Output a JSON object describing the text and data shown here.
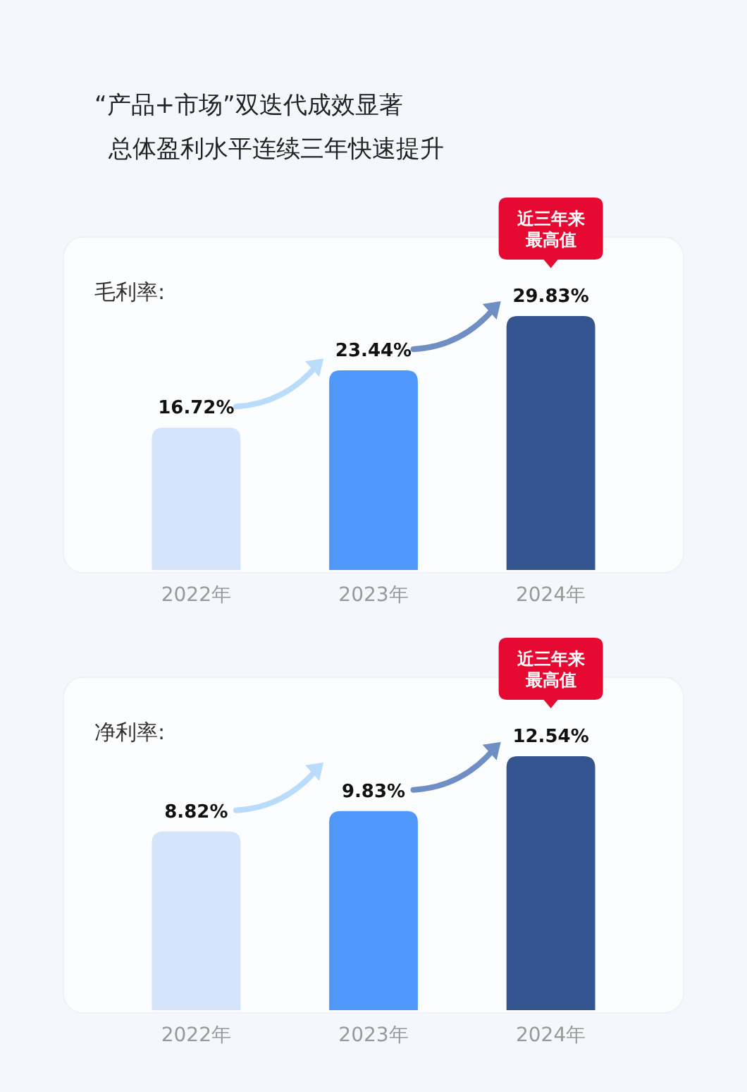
{
  "chart_data": [
    {
      "type": "bar",
      "title": "“产品+市场”双迭代成效显著",
      "subtitle": "总体盈利水平连续三年快速提升",
      "ylabel": "毛利率:",
      "categories": [
        "2022年",
        "2023年",
        "2024年"
      ],
      "values": [
        16.72,
        23.44,
        29.83
      ],
      "colors": [
        "#d6e4fb",
        "#4f97f9",
        "#34548f"
      ],
      "value_labels": [
        "16.72%",
        "23.44%",
        "29.83%"
      ],
      "annotations": [
        "近三年来最高值"
      ]
    },
    {
      "type": "bar",
      "ylabel": "净利率:",
      "categories": [
        "2022年",
        "2023年",
        "2024年"
      ],
      "values": [
        8.82,
        9.83,
        12.54
      ],
      "colors": [
        "#d6e4fb",
        "#4f97f9",
        "#34548f"
      ],
      "value_labels": [
        "8.82%",
        "9.83%",
        "12.54%"
      ],
      "annotations": [
        "近三年来最高值"
      ]
    }
  ]
}
